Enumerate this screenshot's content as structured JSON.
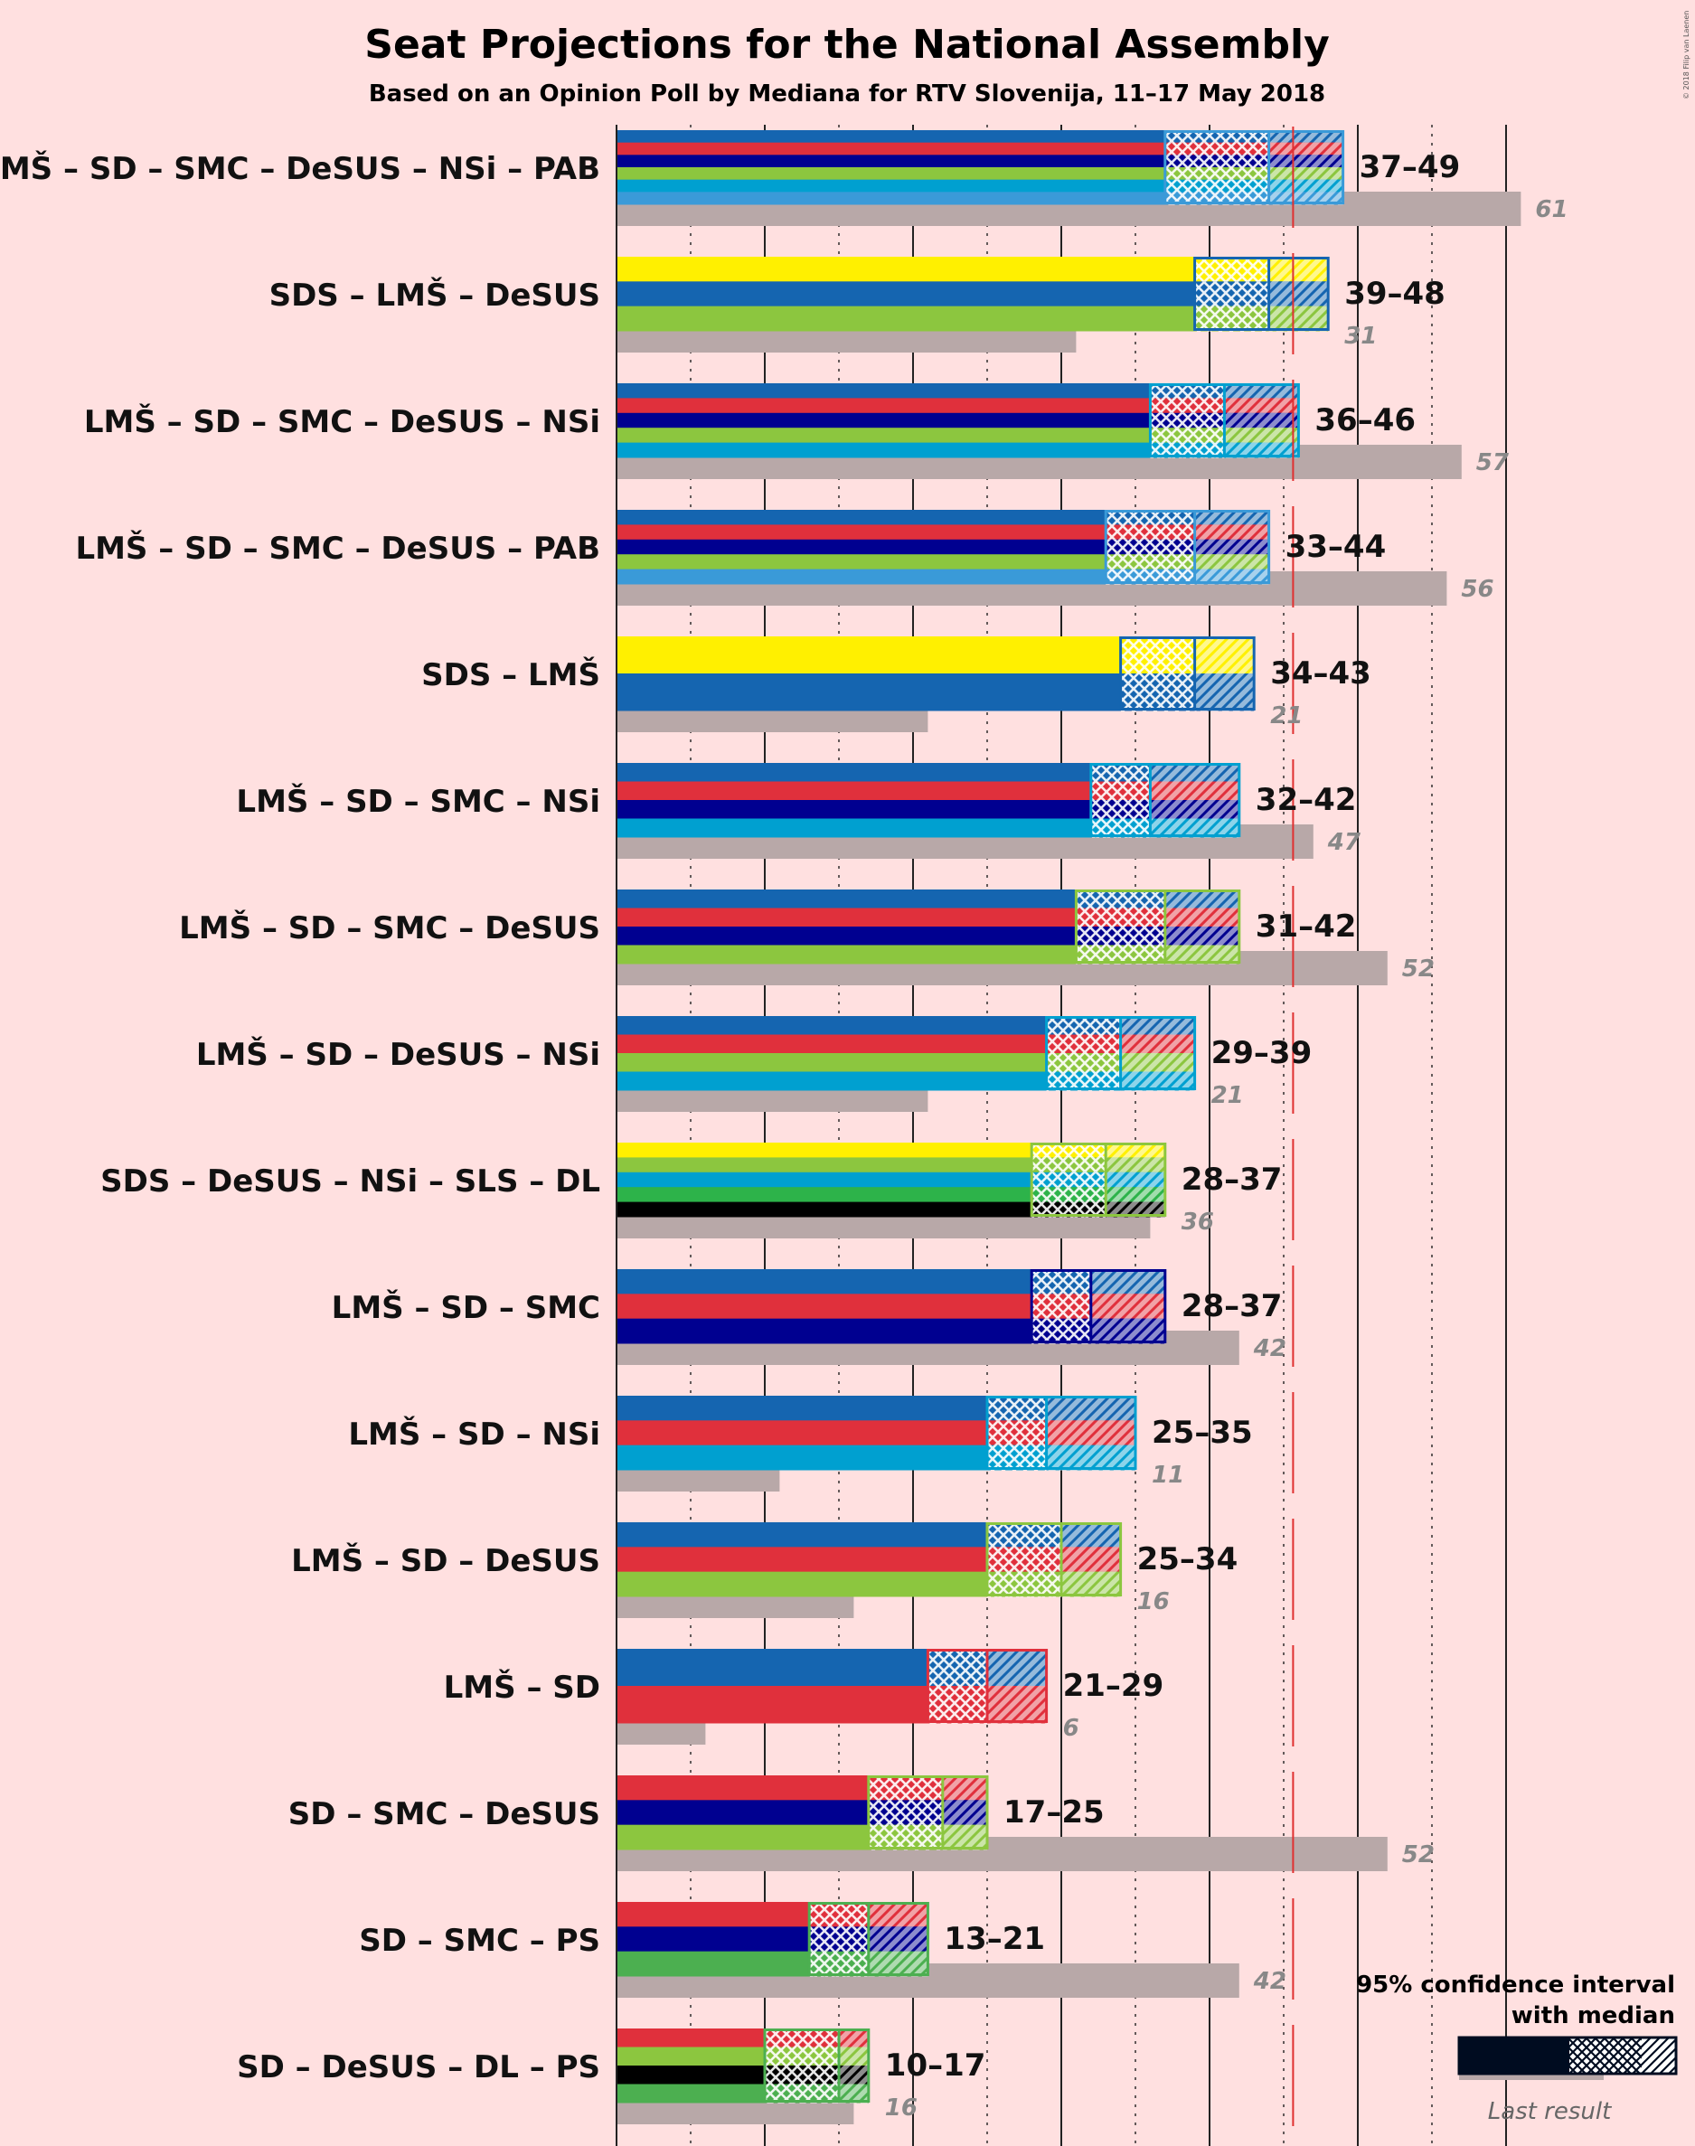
{
  "title": "Seat Projections for the National Assembly",
  "subtitle": "Based on an Opinion Poll by Mediana for RTV Slovenija, 11–17 May 2018",
  "copyright": "© 2018 Filip van Laenen",
  "legend": {
    "line1": "95% confidence interval",
    "line2": "with median",
    "last_result": "Last result"
  },
  "colors": {
    "background": "#ffe0e0",
    "last_result_bar": "#b8a8a8",
    "majority_line": "#e03030",
    "party": {
      "LMŠ": "#1565b0",
      "SD": "#e0303c",
      "SMC": "#000090",
      "DeSUS": "#8cc63f",
      "NSi": "#00a0d0",
      "PAB": "#3a9ad8",
      "SDS": "#fff000",
      "SLS": "#2db34a",
      "DL": "#000000",
      "PS": "#4caf50"
    }
  },
  "chart_data": {
    "type": "bar",
    "xlim": [
      0,
      61
    ],
    "majority": 46,
    "grid_step": 5,
    "coalitions": [
      {
        "label": "LMŠ – SD – SMC – DeSUS – NSi – PAB",
        "parties": [
          "LMŠ",
          "SD",
          "SMC",
          "DeSUS",
          "NSi",
          "PAB"
        ],
        "low": 37,
        "median": 44,
        "high": 49,
        "range_text": "37–49",
        "last": 61,
        "last_text": "61"
      },
      {
        "label": "SDS – LMŠ – DeSUS",
        "parties": [
          "SDS",
          "LMŠ",
          "DeSUS"
        ],
        "low": 39,
        "median": 44,
        "high": 48,
        "range_text": "39–48",
        "last": 31,
        "last_text": "31"
      },
      {
        "label": "LMŠ – SD – SMC – DeSUS – NSi",
        "parties": [
          "LMŠ",
          "SD",
          "SMC",
          "DeSUS",
          "NSi"
        ],
        "low": 36,
        "median": 41,
        "high": 46,
        "range_text": "36–46",
        "last": 57,
        "last_text": "57"
      },
      {
        "label": "LMŠ – SD – SMC – DeSUS – PAB",
        "parties": [
          "LMŠ",
          "SD",
          "SMC",
          "DeSUS",
          "PAB"
        ],
        "low": 33,
        "median": 39,
        "high": 44,
        "range_text": "33–44",
        "last": 56,
        "last_text": "56"
      },
      {
        "label": "SDS – LMŠ",
        "parties": [
          "SDS",
          "LMŠ"
        ],
        "low": 34,
        "median": 39,
        "high": 43,
        "range_text": "34–43",
        "last": 21,
        "last_text": "21"
      },
      {
        "label": "LMŠ – SD – SMC – NSi",
        "parties": [
          "LMŠ",
          "SD",
          "SMC",
          "NSi"
        ],
        "low": 32,
        "median": 36,
        "high": 42,
        "range_text": "32–42",
        "last": 47,
        "last_text": "47"
      },
      {
        "label": "LMŠ – SD – SMC – DeSUS",
        "parties": [
          "LMŠ",
          "SD",
          "SMC",
          "DeSUS"
        ],
        "low": 31,
        "median": 37,
        "high": 42,
        "range_text": "31–42",
        "last": 52,
        "last_text": "52"
      },
      {
        "label": "LMŠ – SD – DeSUS – NSi",
        "parties": [
          "LMŠ",
          "SD",
          "DeSUS",
          "NSi"
        ],
        "low": 29,
        "median": 34,
        "high": 39,
        "range_text": "29–39",
        "last": 21,
        "last_text": "21"
      },
      {
        "label": "SDS – DeSUS – NSi – SLS – DL",
        "parties": [
          "SDS",
          "DeSUS",
          "NSi",
          "SLS",
          "DL"
        ],
        "low": 28,
        "median": 33,
        "high": 37,
        "range_text": "28–37",
        "last": 36,
        "last_text": "36"
      },
      {
        "label": "LMŠ – SD – SMC",
        "parties": [
          "LMŠ",
          "SD",
          "SMC"
        ],
        "low": 28,
        "median": 32,
        "high": 37,
        "range_text": "28–37",
        "last": 42,
        "last_text": "42"
      },
      {
        "label": "LMŠ – SD – NSi",
        "parties": [
          "LMŠ",
          "SD",
          "NSi"
        ],
        "low": 25,
        "median": 29,
        "high": 35,
        "range_text": "25–35",
        "last": 11,
        "last_text": "11"
      },
      {
        "label": "LMŠ – SD – DeSUS",
        "parties": [
          "LMŠ",
          "SD",
          "DeSUS"
        ],
        "low": 25,
        "median": 30,
        "high": 34,
        "range_text": "25–34",
        "last": 16,
        "last_text": "16"
      },
      {
        "label": "LMŠ – SD",
        "parties": [
          "LMŠ",
          "SD"
        ],
        "low": 21,
        "median": 25,
        "high": 29,
        "range_text": "21–29",
        "last": 6,
        "last_text": "6"
      },
      {
        "label": "SD – SMC – DeSUS",
        "parties": [
          "SD",
          "SMC",
          "DeSUS"
        ],
        "low": 17,
        "median": 22,
        "high": 25,
        "range_text": "17–25",
        "last": 52,
        "last_text": "52"
      },
      {
        "label": "SD – SMC – PS",
        "parties": [
          "SD",
          "SMC",
          "PS"
        ],
        "low": 13,
        "median": 17,
        "high": 21,
        "range_text": "13–21",
        "last": 42,
        "last_text": "42"
      },
      {
        "label": "SD – DeSUS – DL – PS",
        "parties": [
          "SD",
          "DeSUS",
          "DL",
          "PS"
        ],
        "low": 10,
        "median": 15,
        "high": 17,
        "range_text": "10–17",
        "last": 16,
        "last_text": "16"
      }
    ]
  }
}
